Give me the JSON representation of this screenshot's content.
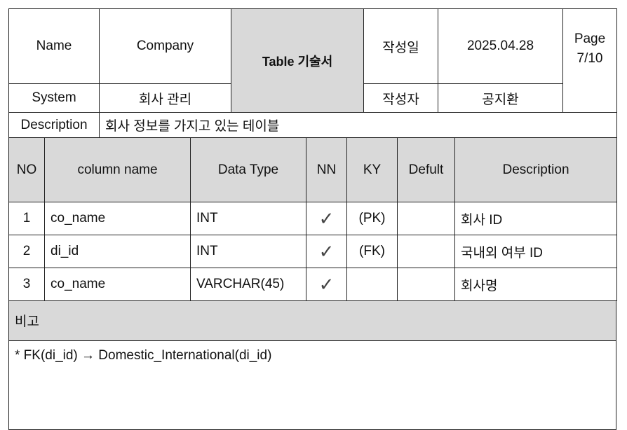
{
  "header": {
    "name_label": "Name",
    "name_value": "Company",
    "title": "Table 기술서",
    "written_date_label": "작성일",
    "written_date_value": "2025.04.28",
    "page_label": "Page",
    "page_value": "7/10",
    "system_label": "System",
    "system_value": "회사 관리",
    "author_label": "작성자",
    "author_value": "공지환",
    "description_label": "Description",
    "description_value": "회사 정보를 가지고 있는 테이블"
  },
  "columns": [
    "NO",
    "column name",
    "Data Type",
    "NN",
    "KY",
    "Defult",
    "Description"
  ],
  "rows": [
    {
      "no": "1",
      "name": "co_name",
      "type": "INT",
      "nn": "✓",
      "ky": "(PK)",
      "default": "",
      "desc": "회사 ID"
    },
    {
      "no": "2",
      "name": "di_id",
      "type": "INT",
      "nn": "✓",
      "ky": "(FK)",
      "default": "",
      "desc": "국내외 여부 ID"
    },
    {
      "no": "3",
      "name": "co_name",
      "type": "VARCHAR(45)",
      "nn": "✓",
      "ky": "",
      "default": "",
      "desc": "회사명"
    }
  ],
  "notes": {
    "title": "비고",
    "body": "* FK(di_id) → Domestic_International(di_id)"
  }
}
